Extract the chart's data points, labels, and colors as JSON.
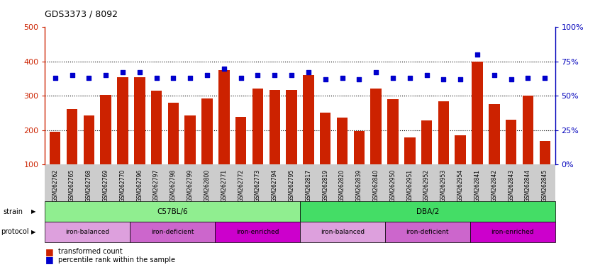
{
  "title": "GDS3373 / 8092",
  "samples": [
    "GSM262762",
    "GSM262765",
    "GSM262768",
    "GSM262769",
    "GSM262770",
    "GSM262796",
    "GSM262797",
    "GSM262798",
    "GSM262799",
    "GSM262800",
    "GSM262771",
    "GSM262772",
    "GSM262773",
    "GSM262794",
    "GSM262795",
    "GSM262817",
    "GSM262819",
    "GSM262820",
    "GSM262839",
    "GSM262840",
    "GSM262950",
    "GSM262951",
    "GSM262952",
    "GSM262953",
    "GSM262954",
    "GSM262841",
    "GSM262842",
    "GSM262843",
    "GSM262844",
    "GSM262845"
  ],
  "bar_values": [
    195,
    262,
    242,
    302,
    355,
    355,
    316,
    280,
    242,
    292,
    375,
    238,
    322,
    318,
    318,
    360,
    252,
    237,
    197,
    322,
    290,
    180,
    228,
    285,
    186,
    400,
    275,
    230,
    300,
    168
  ],
  "blue_dot_values": [
    63,
    65,
    63,
    65,
    67,
    67,
    63,
    63,
    63,
    65,
    70,
    63,
    65,
    65,
    65,
    67,
    62,
    63,
    62,
    67,
    63,
    63,
    65,
    62,
    62,
    80,
    65,
    62,
    63,
    63
  ],
  "strain_groups": [
    {
      "label": "C57BL/6",
      "start": 0,
      "end": 15,
      "color": "#90EE90"
    },
    {
      "label": "DBA/2",
      "start": 15,
      "end": 30,
      "color": "#44DD66"
    }
  ],
  "protocol_groups": [
    {
      "label": "iron-balanced",
      "start": 0,
      "end": 5,
      "color": "#DDA0DD"
    },
    {
      "label": "iron-deficient",
      "start": 5,
      "end": 10,
      "color": "#CC66CC"
    },
    {
      "label": "iron-enriched",
      "start": 10,
      "end": 15,
      "color": "#CC00CC"
    },
    {
      "label": "iron-balanced",
      "start": 15,
      "end": 20,
      "color": "#DDA0DD"
    },
    {
      "label": "iron-deficient",
      "start": 20,
      "end": 25,
      "color": "#CC66CC"
    },
    {
      "label": "iron-enriched",
      "start": 25,
      "end": 30,
      "color": "#CC00CC"
    }
  ],
  "ylim_left": [
    100,
    500
  ],
  "ylim_right": [
    0,
    100
  ],
  "yticks_left": [
    100,
    200,
    300,
    400,
    500
  ],
  "yticks_right": [
    0,
    25,
    50,
    75,
    100
  ],
  "bar_color": "#CC2200",
  "dot_color": "#0000CC",
  "tick_bg_color": "#CCCCCC",
  "grid_color": "#000000",
  "left_axis_color": "#CC2200",
  "right_axis_color": "#0000BB"
}
